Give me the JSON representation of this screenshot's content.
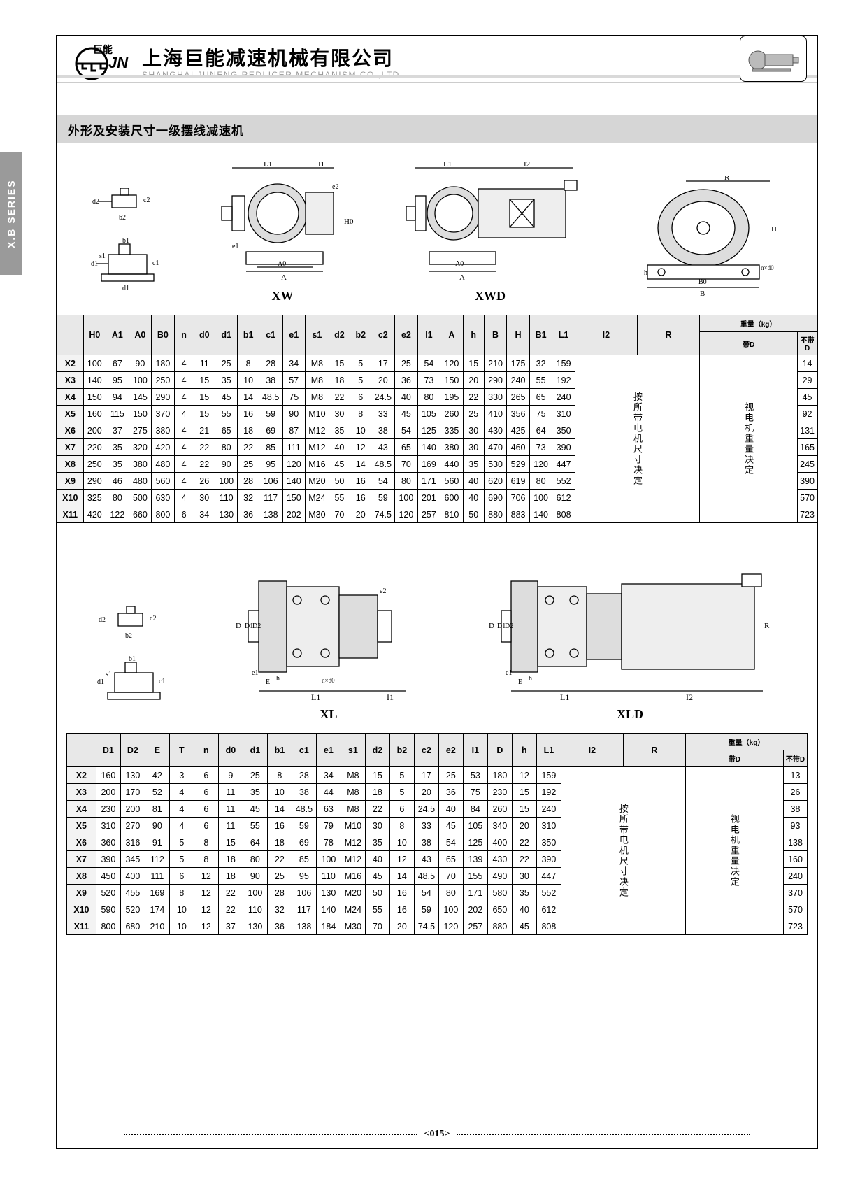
{
  "side_tab": "X.B SERIES",
  "company": {
    "cn": "上海巨能减速机械有限公司",
    "en": "SHANGHAI JUNENG REDLICER MECHANISM CO.,LTD"
  },
  "logo_text": "巨能",
  "section_title": "外形及安装尺寸一级摆线减速机",
  "diagrams1": [
    "XW",
    "XWD",
    ""
  ],
  "diagrams2": [
    "XL",
    "XLD"
  ],
  "page_number": "<015>",
  "notes": {
    "i2r": "按所带电机尺寸决定",
    "weight_note": "视电机重量决定"
  },
  "table1": {
    "headers": [
      "",
      "H0",
      "A1",
      "A0",
      "B0",
      "n",
      "d0",
      "d1",
      "b1",
      "c1",
      "e1",
      "s1",
      "d2",
      "b2",
      "c2",
      "e2",
      "I1",
      "A",
      "h",
      "B",
      "H",
      "B1",
      "L1",
      "I2",
      "R"
    ],
    "weight_header": "重量（kg）",
    "weight_sub": [
      "带D",
      "不带D"
    ],
    "rows": [
      [
        "X2",
        "100",
        "67",
        "90",
        "180",
        "4",
        "11",
        "25",
        "8",
        "28",
        "34",
        "M8",
        "15",
        "5",
        "17",
        "25",
        "54",
        "120",
        "15",
        "210",
        "175",
        "32",
        "159",
        "",
        "",
        "",
        "14"
      ],
      [
        "X3",
        "140",
        "95",
        "100",
        "250",
        "4",
        "15",
        "35",
        "10",
        "38",
        "57",
        "M8",
        "18",
        "5",
        "20",
        "36",
        "73",
        "150",
        "20",
        "290",
        "240",
        "55",
        "192",
        "",
        "",
        "",
        "29"
      ],
      [
        "X4",
        "150",
        "94",
        "145",
        "290",
        "4",
        "15",
        "45",
        "14",
        "48.5",
        "75",
        "M8",
        "22",
        "6",
        "24.5",
        "40",
        "80",
        "195",
        "22",
        "330",
        "265",
        "65",
        "240",
        "",
        "",
        "",
        "45"
      ],
      [
        "X5",
        "160",
        "115",
        "150",
        "370",
        "4",
        "15",
        "55",
        "16",
        "59",
        "90",
        "M10",
        "30",
        "8",
        "33",
        "45",
        "105",
        "260",
        "25",
        "410",
        "356",
        "75",
        "310",
        "",
        "",
        "",
        "92"
      ],
      [
        "X6",
        "200",
        "37",
        "275",
        "380",
        "4",
        "21",
        "65",
        "18",
        "69",
        "87",
        "M12",
        "35",
        "10",
        "38",
        "54",
        "125",
        "335",
        "30",
        "430",
        "425",
        "64",
        "350",
        "",
        "",
        "",
        "131"
      ],
      [
        "X7",
        "220",
        "35",
        "320",
        "420",
        "4",
        "22",
        "80",
        "22",
        "85",
        "111",
        "M12",
        "40",
        "12",
        "43",
        "65",
        "140",
        "380",
        "30",
        "470",
        "460",
        "73",
        "390",
        "",
        "",
        "",
        "165"
      ],
      [
        "X8",
        "250",
        "35",
        "380",
        "480",
        "4",
        "22",
        "90",
        "25",
        "95",
        "120",
        "M16",
        "45",
        "14",
        "48.5",
        "70",
        "169",
        "440",
        "35",
        "530",
        "529",
        "120",
        "447",
        "",
        "",
        "",
        "245"
      ],
      [
        "X9",
        "290",
        "46",
        "480",
        "560",
        "4",
        "26",
        "100",
        "28",
        "106",
        "140",
        "M20",
        "50",
        "16",
        "54",
        "80",
        "171",
        "560",
        "40",
        "620",
        "619",
        "80",
        "552",
        "",
        "",
        "",
        "390"
      ],
      [
        "X10",
        "325",
        "80",
        "500",
        "630",
        "4",
        "30",
        "110",
        "32",
        "117",
        "150",
        "M24",
        "55",
        "16",
        "59",
        "100",
        "201",
        "600",
        "40",
        "690",
        "706",
        "100",
        "612",
        "",
        "",
        "",
        "570"
      ],
      [
        "X11",
        "420",
        "122",
        "660",
        "800",
        "6",
        "34",
        "130",
        "36",
        "138",
        "202",
        "M30",
        "70",
        "20",
        "74.5",
        "120",
        "257",
        "810",
        "50",
        "880",
        "883",
        "140",
        "808",
        "",
        "",
        "",
        "723"
      ]
    ]
  },
  "table2": {
    "headers": [
      "",
      "D1",
      "D2",
      "E",
      "T",
      "n",
      "d0",
      "d1",
      "b1",
      "c1",
      "e1",
      "s1",
      "d2",
      "b2",
      "c2",
      "e2",
      "I1",
      "D",
      "h",
      "L1",
      "I2",
      "R"
    ],
    "weight_header": "重量（kg）",
    "weight_sub": [
      "带D",
      "不带D"
    ],
    "rows": [
      [
        "X2",
        "160",
        "130",
        "42",
        "3",
        "6",
        "9",
        "25",
        "8",
        "28",
        "34",
        "M8",
        "15",
        "5",
        "17",
        "25",
        "53",
        "180",
        "12",
        "159",
        "",
        "",
        "",
        "13"
      ],
      [
        "X3",
        "200",
        "170",
        "52",
        "4",
        "6",
        "11",
        "35",
        "10",
        "38",
        "44",
        "M8",
        "18",
        "5",
        "20",
        "36",
        "75",
        "230",
        "15",
        "192",
        "",
        "",
        "",
        "26"
      ],
      [
        "X4",
        "230",
        "200",
        "81",
        "4",
        "6",
        "11",
        "45",
        "14",
        "48.5",
        "63",
        "M8",
        "22",
        "6",
        "24.5",
        "40",
        "84",
        "260",
        "15",
        "240",
        "",
        "",
        "",
        "38"
      ],
      [
        "X5",
        "310",
        "270",
        "90",
        "4",
        "6",
        "11",
        "55",
        "16",
        "59",
        "79",
        "M10",
        "30",
        "8",
        "33",
        "45",
        "105",
        "340",
        "20",
        "310",
        "",
        "",
        "",
        "93"
      ],
      [
        "X6",
        "360",
        "316",
        "91",
        "5",
        "8",
        "15",
        "64",
        "18",
        "69",
        "78",
        "M12",
        "35",
        "10",
        "38",
        "54",
        "125",
        "400",
        "22",
        "350",
        "",
        "",
        "",
        "138"
      ],
      [
        "X7",
        "390",
        "345",
        "112",
        "5",
        "8",
        "18",
        "80",
        "22",
        "85",
        "100",
        "M12",
        "40",
        "12",
        "43",
        "65",
        "139",
        "430",
        "22",
        "390",
        "",
        "",
        "",
        "160"
      ],
      [
        "X8",
        "450",
        "400",
        "111",
        "6",
        "12",
        "18",
        "90",
        "25",
        "95",
        "110",
        "M16",
        "45",
        "14",
        "48.5",
        "70",
        "155",
        "490",
        "30",
        "447",
        "",
        "",
        "",
        "240"
      ],
      [
        "X9",
        "520",
        "455",
        "169",
        "8",
        "12",
        "22",
        "100",
        "28",
        "106",
        "130",
        "M20",
        "50",
        "16",
        "54",
        "80",
        "171",
        "580",
        "35",
        "552",
        "",
        "",
        "",
        "370"
      ],
      [
        "X10",
        "590",
        "520",
        "174",
        "10",
        "12",
        "22",
        "110",
        "32",
        "117",
        "140",
        "M24",
        "55",
        "16",
        "59",
        "100",
        "202",
        "650",
        "40",
        "612",
        "",
        "",
        "",
        "570"
      ],
      [
        "X11",
        "800",
        "680",
        "210",
        "10",
        "12",
        "37",
        "130",
        "36",
        "138",
        "184",
        "M30",
        "70",
        "20",
        "74.5",
        "120",
        "257",
        "880",
        "45",
        "808",
        "",
        "",
        "",
        "723"
      ]
    ]
  },
  "colors": {
    "header_bg": "#e8e8e8",
    "section_bg": "#d6d6d6",
    "side_bg": "#9a9a9a"
  }
}
